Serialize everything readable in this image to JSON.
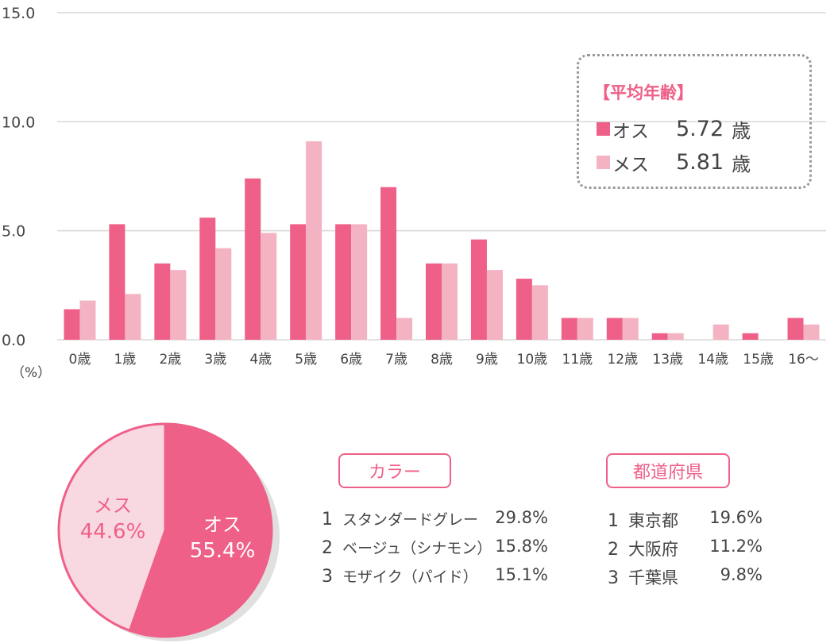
{
  "chart_data": [
    {
      "type": "bar",
      "categories": [
        "0歳",
        "1歳",
        "2歳",
        "3歳",
        "4歳",
        "5歳",
        "6歳",
        "7歳",
        "8歳",
        "9歳",
        "10歳",
        "11歳",
        "12歳",
        "13歳",
        "14歳",
        "15歳",
        "16〜"
      ],
      "series": [
        {
          "name": "オス",
          "color": "#ef6088",
          "values": [
            1.4,
            5.3,
            3.5,
            5.6,
            7.4,
            5.3,
            5.3,
            7.0,
            3.5,
            4.6,
            2.8,
            1.0,
            1.0,
            0.3,
            0.0,
            0.3,
            1.0
          ]
        },
        {
          "name": "メス",
          "color": "#f4b3c3",
          "values": [
            1.8,
            2.1,
            3.2,
            4.2,
            4.9,
            9.1,
            5.3,
            1.0,
            3.5,
            3.2,
            2.5,
            1.0,
            1.0,
            0.3,
            0.7,
            0.0,
            0.7
          ]
        }
      ],
      "yticks": [
        "15.0",
        "10.0",
        "5.0",
        "0.0"
      ],
      "ylim": [
        0,
        15
      ],
      "ylabel": "（%）",
      "grid": true
    },
    {
      "type": "pie",
      "slices": [
        {
          "label": "オス",
          "value": 55.4,
          "value_label": "55.4%",
          "color": "#ef6088",
          "text_color": "#ffffff"
        },
        {
          "label": "メス",
          "value": 44.6,
          "value_label": "44.6%",
          "color": "#f9d9e1",
          "text_color": "#ef6088"
        }
      ]
    }
  ],
  "average_age": {
    "title": "【平均年齢】",
    "rows": [
      {
        "label": "オス",
        "value": "5.72",
        "unit": "歳",
        "color": "#ef6088"
      },
      {
        "label": "メス",
        "value": "5.81",
        "unit": "歳",
        "color": "#f4b3c3"
      }
    ]
  },
  "color_ranking": {
    "title": "カラー",
    "items": [
      {
        "rank": "1",
        "name": "スタンダードグレー",
        "pct": "29.8%"
      },
      {
        "rank": "2",
        "name": "ベージュ（シナモン）",
        "pct": "15.8%"
      },
      {
        "rank": "3",
        "name": "モザイク（パイド）",
        "pct": "15.1%"
      }
    ]
  },
  "prefecture_ranking": {
    "title": "都道府県",
    "items": [
      {
        "rank": "1",
        "name": "東京都",
        "pct": "19.6%"
      },
      {
        "rank": "2",
        "name": "大阪府",
        "pct": "11.2%"
      },
      {
        "rank": "3",
        "name": "千葉県",
        "pct": "9.8%"
      }
    ]
  }
}
